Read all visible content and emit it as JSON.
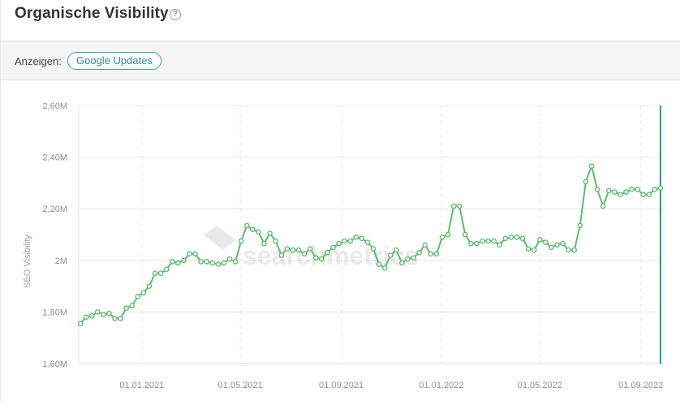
{
  "header": {
    "title": "Organische Visibility",
    "help_icon": "help-circle-icon"
  },
  "toolbar": {
    "label": "Anzeigen:",
    "google_updates_label": "Google Updates"
  },
  "watermark": "searchmetrics",
  "colors": {
    "line": "#5bbf6d",
    "marker_fill": "#ffffff",
    "current_marker": "#1f9a9a",
    "grid": "#e9e9e9",
    "axis_text": "#8f8f8f"
  },
  "chart_data": {
    "type": "line",
    "ylabel": "SEO Visibility",
    "xlabel": "",
    "y_ticks": [
      "1,60M",
      "1,80M",
      "2,00M",
      "2,20M",
      "2,40M",
      "2,60M"
    ],
    "y_tick_labels": [
      "1,60M",
      "1,80M",
      "2M",
      "2,20M",
      "2,40M",
      "2,60M"
    ],
    "ylim": [
      1.6,
      2.6
    ],
    "x_tick_labels": [
      "01.01.2021",
      "01.05.2021",
      "01.09.2021",
      "01.01.2022",
      "01.05.2022",
      "01.09.2022"
    ],
    "x_tick_dates": [
      "2021-01-01",
      "2021-05-01",
      "2021-09-01",
      "2022-01-01",
      "2022-05-01",
      "2022-09-01"
    ],
    "xlim": [
      "2020-10-16",
      "2022-09-30"
    ],
    "grid": true,
    "series": [
      {
        "dates": [
          "2020-10-18",
          "2020-10-25",
          "2020-11-01",
          "2020-11-08",
          "2020-11-15",
          "2020-11-22",
          "2020-11-29",
          "2020-12-06",
          "2020-12-13",
          "2020-12-20",
          "2020-12-27",
          "2021-01-03",
          "2021-01-10",
          "2021-01-17",
          "2021-01-24",
          "2021-01-31",
          "2021-02-07",
          "2021-02-14",
          "2021-02-21",
          "2021-02-28",
          "2021-03-07",
          "2021-03-14",
          "2021-03-21",
          "2021-03-28",
          "2021-04-04",
          "2021-04-11",
          "2021-04-18",
          "2021-04-25",
          "2021-05-02",
          "2021-05-09",
          "2021-05-16",
          "2021-05-23",
          "2021-05-30",
          "2021-06-06",
          "2021-06-13",
          "2021-06-20",
          "2021-06-27",
          "2021-07-04",
          "2021-07-11",
          "2021-07-18",
          "2021-07-25",
          "2021-08-01",
          "2021-08-08",
          "2021-08-15",
          "2021-08-22",
          "2021-08-29",
          "2021-09-05",
          "2021-09-12",
          "2021-09-19",
          "2021-09-26",
          "2021-10-03",
          "2021-10-10",
          "2021-10-17",
          "2021-10-24",
          "2021-10-31",
          "2021-11-07",
          "2021-11-14",
          "2021-11-21",
          "2021-11-28",
          "2021-12-05",
          "2021-12-12",
          "2021-12-19",
          "2021-12-26",
          "2022-01-02",
          "2022-01-09",
          "2022-01-16",
          "2022-01-23",
          "2022-01-30",
          "2022-02-06",
          "2022-02-13",
          "2022-02-20",
          "2022-02-27",
          "2022-03-06",
          "2022-03-13",
          "2022-03-20",
          "2022-03-27",
          "2022-04-03",
          "2022-04-10",
          "2022-04-17",
          "2022-04-24",
          "2022-05-01",
          "2022-05-08",
          "2022-05-15",
          "2022-05-22",
          "2022-05-29",
          "2022-06-05",
          "2022-06-12",
          "2022-06-19",
          "2022-06-26",
          "2022-07-03",
          "2022-07-10",
          "2022-07-17",
          "2022-07-24",
          "2022-07-31",
          "2022-08-07",
          "2022-08-14",
          "2022-08-21",
          "2022-08-28",
          "2022-09-04",
          "2022-09-11",
          "2022-09-18",
          "2022-09-25"
        ],
        "values": [
          1.755,
          1.78,
          1.785,
          1.8,
          1.79,
          1.795,
          1.775,
          1.775,
          1.815,
          1.825,
          1.86,
          1.875,
          1.9,
          1.95,
          1.95,
          1.965,
          1.995,
          1.99,
          2.0,
          2.025,
          2.025,
          1.995,
          1.995,
          1.99,
          1.985,
          1.99,
          2.005,
          1.995,
          2.075,
          2.135,
          2.12,
          2.11,
          2.065,
          2.105,
          2.075,
          2.02,
          2.045,
          2.04,
          2.04,
          2.025,
          2.045,
          2.01,
          2.005,
          2.03,
          2.05,
          2.065,
          2.075,
          2.075,
          2.09,
          2.085,
          2.07,
          2.045,
          1.985,
          1.97,
          2.02,
          2.04,
          1.99,
          2.005,
          2.01,
          2.03,
          2.06,
          2.025,
          2.025,
          2.09,
          2.1,
          2.21,
          2.21,
          2.1,
          2.065,
          2.065,
          2.075,
          2.075,
          2.075,
          2.06,
          2.085,
          2.09,
          2.09,
          2.085,
          2.045,
          2.04,
          2.08,
          2.07,
          2.05,
          2.06,
          2.065,
          2.04,
          2.04,
          2.135,
          2.305,
          2.365,
          2.275,
          2.21,
          2.27,
          2.265,
          2.255,
          2.265,
          2.275,
          2.275,
          2.255,
          2.255,
          2.275,
          2.28
        ]
      }
    ]
  }
}
